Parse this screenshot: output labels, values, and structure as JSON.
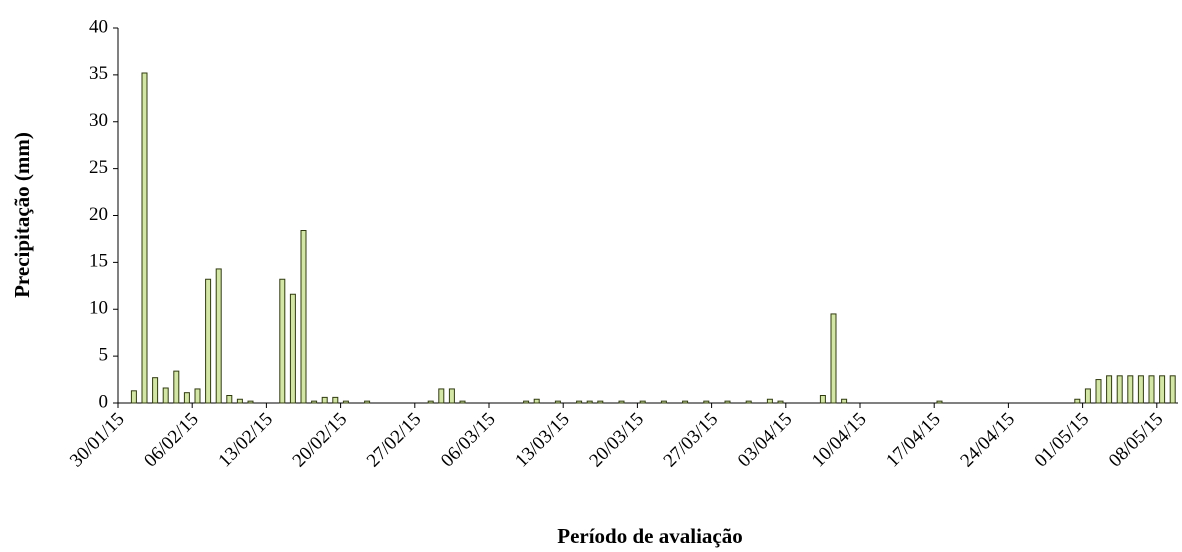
{
  "chart_data": {
    "type": "bar",
    "x_label": "Período de avaliação",
    "y_label": "Precipitação (mm)",
    "categories": [
      "30/01/15",
      null,
      null,
      null,
      null,
      null,
      null,
      "06/02/15",
      null,
      null,
      null,
      null,
      null,
      null,
      "13/02/15",
      null,
      null,
      null,
      null,
      null,
      null,
      "20/02/15",
      null,
      null,
      null,
      null,
      null,
      null,
      "27/02/15",
      null,
      null,
      null,
      null,
      null,
      null,
      "06/03/15",
      null,
      null,
      null,
      null,
      null,
      null,
      "13/03/15",
      null,
      null,
      null,
      null,
      null,
      null,
      "20/03/15",
      null,
      null,
      null,
      null,
      null,
      null,
      "27/03/15",
      null,
      null,
      null,
      null,
      null,
      null,
      "03/04/15",
      null,
      null,
      null,
      null,
      null,
      null,
      "10/04/15",
      null,
      null,
      null,
      null,
      null,
      null,
      "17/04/15",
      null,
      null,
      null,
      null,
      null,
      null,
      "24/04/15",
      null,
      null,
      null,
      null,
      null,
      null,
      "01/05/15",
      null,
      null,
      null,
      null,
      null,
      null,
      "08/05/15",
      null
    ],
    "values": [
      0,
      1.3,
      35.2,
      2.7,
      1.6,
      3.4,
      1.1,
      1.5,
      13.2,
      14.3,
      0.8,
      0.4,
      0.2,
      0,
      0,
      13.2,
      11.6,
      18.4,
      0.2,
      0.6,
      0.6,
      0.2,
      0,
      0.2,
      0,
      0,
      0,
      0,
      0,
      0.2,
      1.5,
      1.5,
      0.2,
      0,
      0,
      0,
      0,
      0,
      0.2,
      0.4,
      0,
      0.2,
      0,
      0.2,
      0.2,
      0.2,
      0,
      0.2,
      0,
      0.2,
      0,
      0.2,
      0,
      0.2,
      0,
      0.2,
      0,
      0.2,
      0,
      0.2,
      0,
      0.4,
      0.2,
      0,
      0,
      0,
      0.8,
      9.5,
      0.4,
      0,
      0,
      0,
      0,
      0,
      0,
      0,
      0,
      0.2,
      0,
      0,
      0,
      0,
      0,
      0,
      0,
      0,
      0,
      0,
      0,
      0,
      0.4,
      1.5,
      2.5,
      2.9,
      2.9,
      2.9,
      2.9,
      2.9,
      2.9,
      2.9
    ],
    "color": "#d4e6a5",
    "ylim": [
      0,
      40
    ],
    "yticks": [
      0,
      5,
      10,
      15,
      20,
      25,
      30,
      35,
      40
    ],
    "grid": false
  }
}
